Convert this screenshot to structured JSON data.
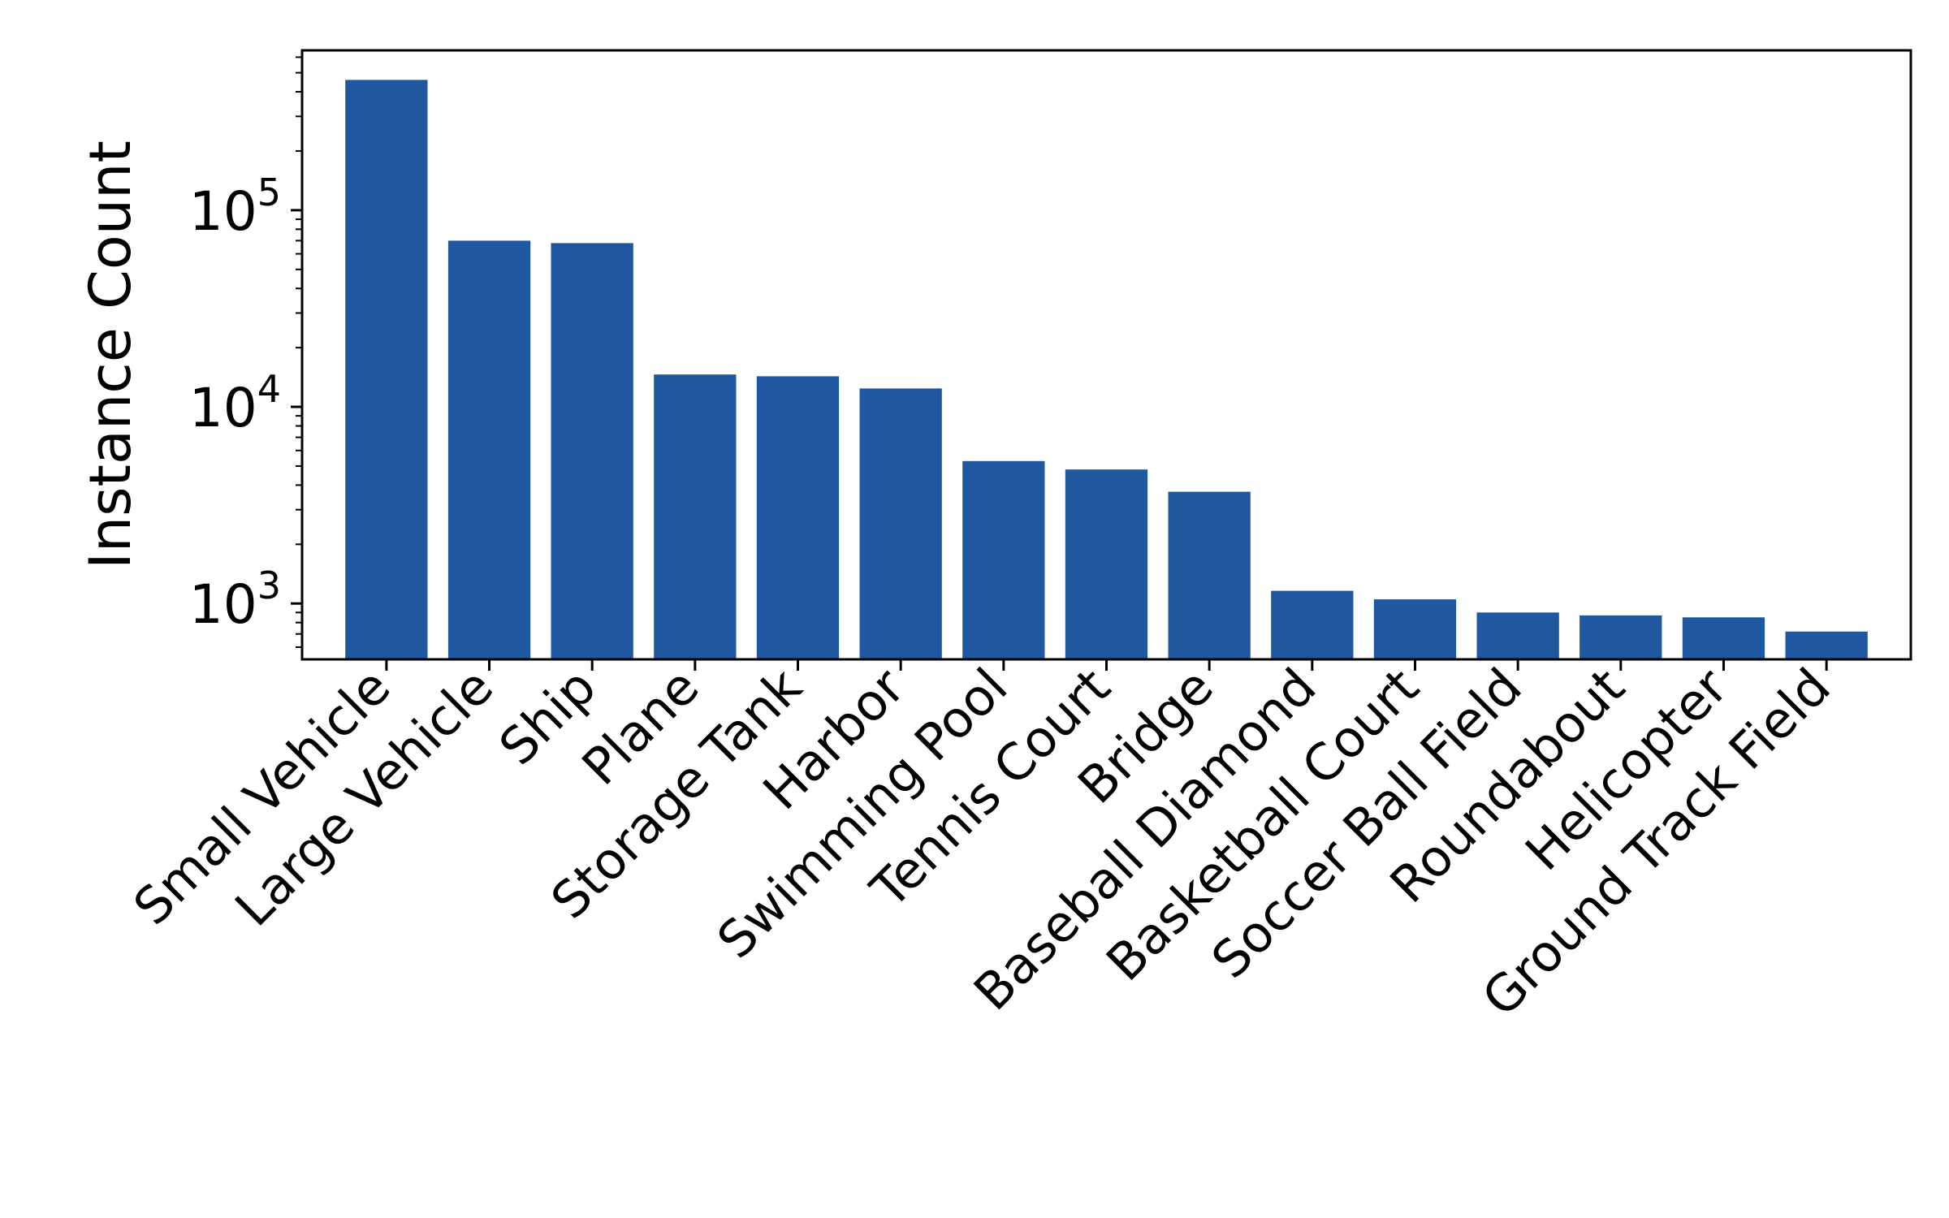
{
  "chart_data": {
    "type": "bar",
    "title": "",
    "xlabel": "",
    "ylabel": "Instance Count",
    "yscale": "log",
    "ylim": [
      520,
      650000
    ],
    "grid": false,
    "legend": "none",
    "bar_color": "#1f58a0",
    "categories": [
      "Small Vehicle",
      "Large Vehicle",
      "Ship",
      "Plane",
      "Storage Tank",
      "Harbor",
      "Swimming Pool",
      "Tennis Court",
      "Bridge",
      "Baseball Diamond",
      "Basketball Court",
      "Soccer Ball Field",
      "Roundabout",
      "Helicopter",
      "Ground Track Field"
    ],
    "values": [
      460000,
      70000,
      68000,
      14600,
      14300,
      12400,
      5300,
      4800,
      3700,
      1160,
      1050,
      900,
      870,
      850,
      720
    ],
    "yticks": [
      {
        "value": 1000,
        "base": "10",
        "exp": "3"
      },
      {
        "value": 10000,
        "base": "10",
        "exp": "4"
      },
      {
        "value": 100000,
        "base": "10",
        "exp": "5"
      }
    ]
  }
}
